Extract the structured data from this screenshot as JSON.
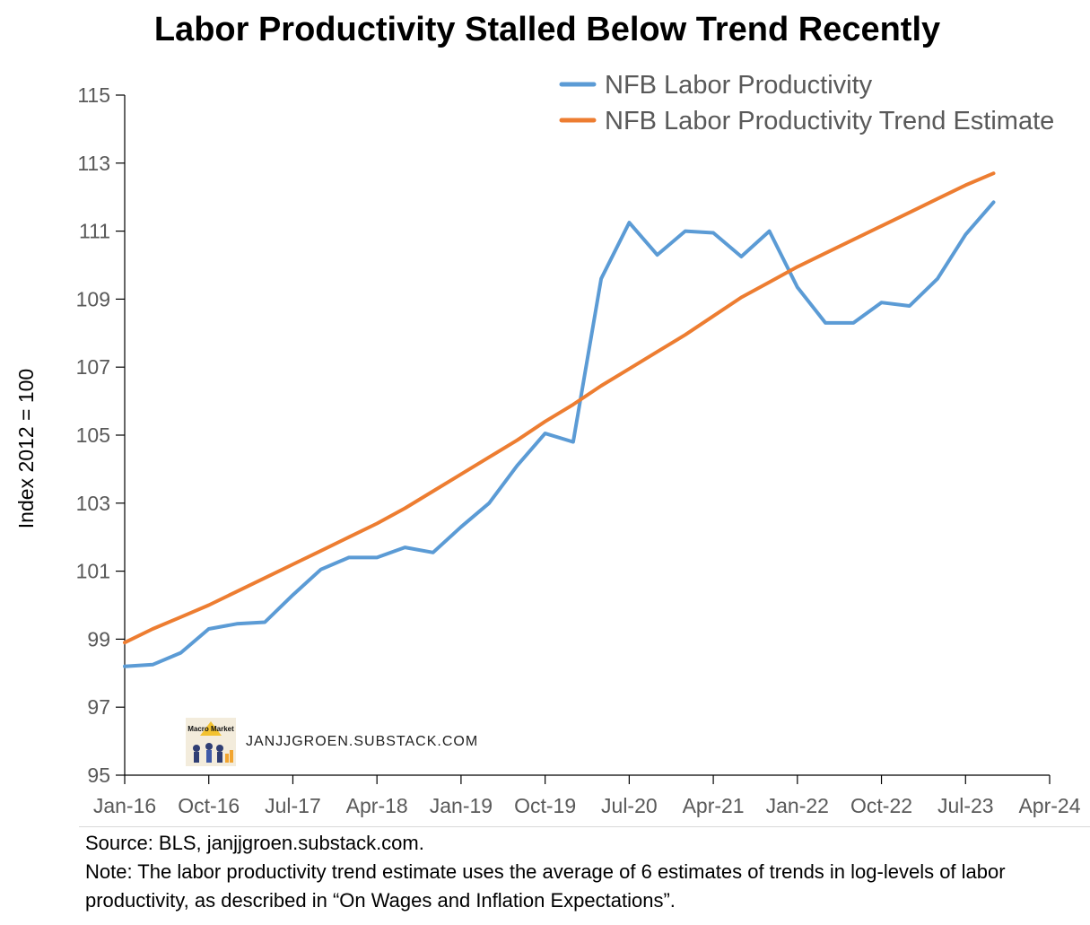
{
  "chart_data": {
    "type": "line",
    "title": "Labor Productivity Stalled Below Trend Recently",
    "ylabel": "Index 2012 = 100",
    "xlabel": "",
    "ylim": [
      95,
      115
    ],
    "yticks": [
      95,
      97,
      99,
      101,
      103,
      105,
      107,
      109,
      111,
      113,
      115
    ],
    "xticks": [
      "Jan-16",
      "Oct-16",
      "Jul-17",
      "Apr-18",
      "Jan-19",
      "Oct-19",
      "Jul-20",
      "Apr-21",
      "Jan-22",
      "Oct-22",
      "Jul-23",
      "Apr-24"
    ],
    "legend_position": "top-right",
    "x": [
      "2016Q1",
      "2016Q2",
      "2016Q3",
      "2016Q4",
      "2017Q1",
      "2017Q2",
      "2017Q3",
      "2017Q4",
      "2018Q1",
      "2018Q2",
      "2018Q3",
      "2018Q4",
      "2019Q1",
      "2019Q2",
      "2019Q3",
      "2019Q4",
      "2020Q1",
      "2020Q2",
      "2020Q3",
      "2020Q4",
      "2021Q1",
      "2021Q2",
      "2021Q3",
      "2021Q4",
      "2022Q1",
      "2022Q2",
      "2022Q3",
      "2022Q4",
      "2023Q1",
      "2023Q2",
      "2023Q3",
      "2023Q4"
    ],
    "series": [
      {
        "name": "NFB Labor Productivity",
        "color": "#5b9bd5",
        "values": [
          98.2,
          98.25,
          98.6,
          99.3,
          99.45,
          99.5,
          100.3,
          101.05,
          101.4,
          101.4,
          101.7,
          101.55,
          102.3,
          103.0,
          104.1,
          105.05,
          104.8,
          109.6,
          111.25,
          110.3,
          111.0,
          110.95,
          110.25,
          111.0,
          109.35,
          108.3,
          108.3,
          108.9,
          108.8,
          109.6,
          110.9,
          111.85
        ]
      },
      {
        "name": "NFB Labor Productivity Trend Estimate",
        "color": "#ed7d31",
        "values": [
          98.9,
          99.3,
          99.65,
          100.0,
          100.4,
          100.8,
          101.2,
          101.6,
          102.0,
          102.4,
          102.85,
          103.35,
          103.85,
          104.35,
          104.85,
          105.4,
          105.9,
          106.45,
          106.95,
          107.45,
          107.95,
          108.5,
          109.05,
          109.5,
          109.95,
          110.35,
          110.75,
          111.15,
          111.55,
          111.95,
          112.35,
          112.7
        ]
      }
    ]
  },
  "watermark": {
    "logo_text": "Macro Market Notes",
    "site": "JANJJGROEN.SUBSTACK.COM"
  },
  "footer": {
    "source": "Source: BLS, janjjgroen.substack.com.",
    "note": "Note: The labor productivity trend estimate uses the average of 6 estimates of trends in log-levels of labor productivity, as described in “On Wages and Inflation Expectations”."
  }
}
